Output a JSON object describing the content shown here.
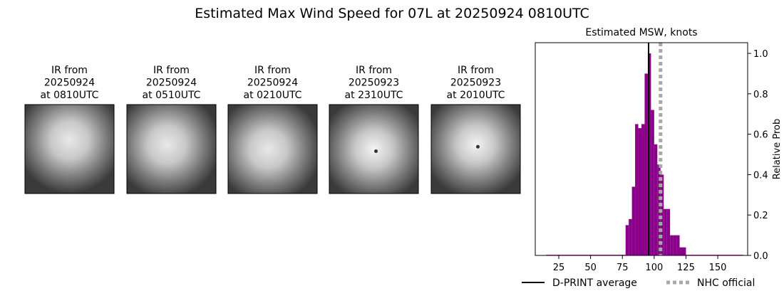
{
  "title": "Estimated Max Wind Speed for 07L at 20250924 0810UTC",
  "panels": [
    {
      "lines": [
        "IR from",
        "20250924",
        "at 0810UTC"
      ]
    },
    {
      "lines": [
        "IR from",
        "20250924",
        "at 0510UTC"
      ]
    },
    {
      "lines": [
        "IR from",
        "20250924",
        "at 0210UTC"
      ]
    },
    {
      "lines": [
        "IR from",
        "20250923",
        "at 2310UTC"
      ]
    },
    {
      "lines": [
        "IR from",
        "20250923",
        "at 2010UTC"
      ]
    }
  ],
  "chart_data": {
    "type": "histogram",
    "title": "Estimated MSW, knots",
    "y_label": "Relative Prob",
    "bins": [
      15,
      77.5,
      80,
      82.5,
      85,
      87.5,
      90,
      92.5,
      95,
      97.5,
      100,
      102.5,
      105,
      107.5,
      110,
      112.5,
      115,
      117.5,
      120,
      122.5,
      125,
      170
    ],
    "values": [
      0.003,
      0.15,
      0.18,
      0.34,
      0.65,
      0.63,
      0.65,
      0.9,
      1.0,
      0.72,
      0.55,
      0.45,
      0.4,
      0.23,
      0.23,
      0.1,
      0.1,
      0.1,
      0.04,
      0.04,
      0.003
    ],
    "color": "#8b008b",
    "xlim": [
      6.5,
      173.5
    ],
    "ylim": [
      0,
      1.053
    ],
    "xticks": [
      25,
      50,
      75,
      100,
      125,
      150
    ],
    "yticks": [
      {
        "value": 0,
        "label": "0.0"
      },
      {
        "value": 0.2,
        "label": "0.2"
      },
      {
        "value": 0.4,
        "label": "0.4"
      },
      {
        "value": 0.6,
        "label": "0.6"
      },
      {
        "value": 0.8,
        "label": "0.8"
      },
      {
        "value": 1,
        "label": "1.0"
      }
    ],
    "lines": [
      {
        "name": "D-PRINT average",
        "value": 95.6,
        "color": "#000000",
        "style": "solid"
      },
      {
        "name": "NHC official",
        "value": 105,
        "color": "#a9a9a9",
        "style": "dotted"
      }
    ]
  }
}
